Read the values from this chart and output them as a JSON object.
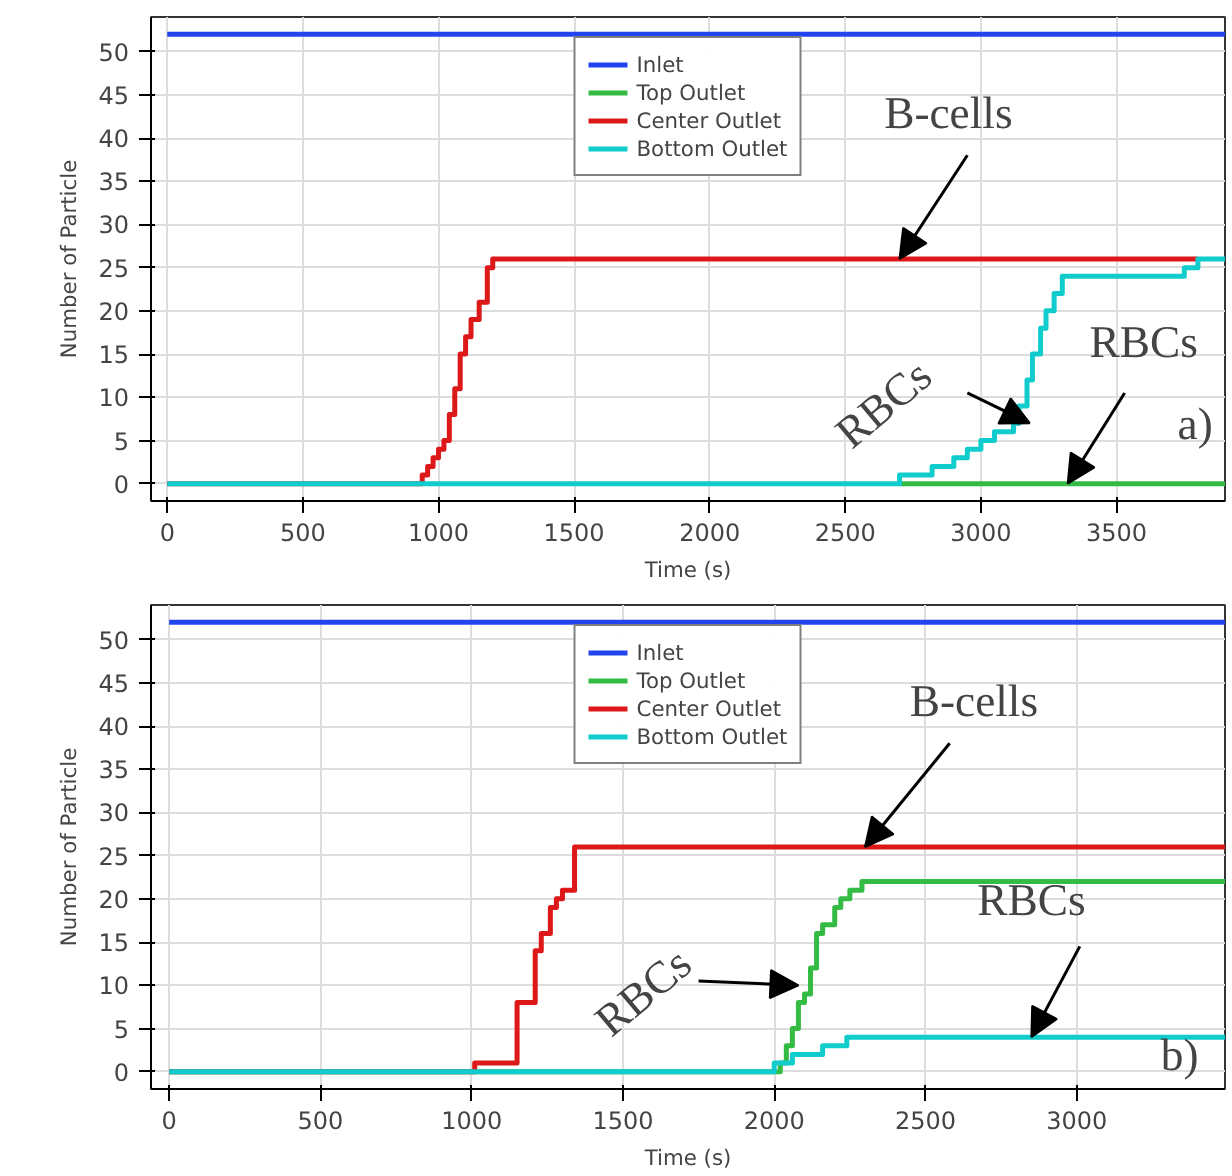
{
  "chart_data": [
    {
      "type": "step",
      "xlabel": "Time (s)",
      "ylabel": "Number of Particle",
      "xlim": [
        -60,
        3900
      ],
      "ylim": [
        -2,
        54
      ],
      "xticks": [
        0,
        500,
        1000,
        1500,
        2000,
        2500,
        3000,
        3500
      ],
      "yticks": [
        0,
        5,
        10,
        15,
        20,
        25,
        30,
        35,
        40,
        45,
        50
      ],
      "grid": true,
      "legend": "top",
      "series": [
        {
          "name": "Inlet",
          "color": "#2244ee",
          "x": [
            0,
            3900
          ],
          "values": [
            52,
            52
          ]
        },
        {
          "name": "Top Outlet",
          "color": "#33bb44",
          "x": [
            2700,
            3900
          ],
          "values": [
            0,
            0
          ]
        },
        {
          "name": "Center Outlet",
          "color": "#dd1818",
          "x": [
            0,
            940,
            960,
            980,
            1000,
            1020,
            1040,
            1060,
            1080,
            1100,
            1120,
            1150,
            1180,
            1200,
            3800
          ],
          "values": [
            0,
            1,
            2,
            3,
            4,
            5,
            8,
            11,
            15,
            17,
            19,
            21,
            25,
            26,
            26
          ]
        },
        {
          "name": "Bottom Outlet",
          "color": "#11cccc",
          "x": [
            0,
            2700,
            2820,
            2900,
            2950,
            3000,
            3050,
            3120,
            3140,
            3170,
            3190,
            3220,
            3240,
            3270,
            3300,
            3750,
            3800,
            3900
          ],
          "values": [
            0,
            1,
            2,
            3,
            4,
            5,
            6,
            7,
            9,
            12,
            15,
            18,
            20,
            22,
            24,
            25,
            26,
            26
          ]
        }
      ],
      "annotations": [
        {
          "text": "B-cells",
          "x": 2700,
          "y": 26
        },
        {
          "text": "RBCs",
          "x": 3180,
          "y": 7
        },
        {
          "text": "RBCs",
          "x": 3320,
          "y": 0
        },
        "a)"
      ]
    },
    {
      "type": "step",
      "xlabel": "Time (s)",
      "ylabel": "Number of Particle",
      "xlim": [
        -60,
        3490
      ],
      "ylim": [
        -2,
        54
      ],
      "xticks": [
        0,
        500,
        1000,
        1500,
        2000,
        2500,
        3000
      ],
      "yticks": [
        0,
        5,
        10,
        15,
        20,
        25,
        30,
        35,
        40,
        45,
        50
      ],
      "grid": true,
      "legend": "top",
      "series": [
        {
          "name": "Inlet",
          "color": "#2244ee",
          "x": [
            0,
            3490
          ],
          "values": [
            52,
            52
          ]
        },
        {
          "name": "Top Outlet",
          "color": "#33bb44",
          "x": [
            0,
            2020,
            2040,
            2060,
            2080,
            2100,
            2120,
            2140,
            2160,
            2200,
            2220,
            2250,
            2290,
            3490
          ],
          "values": [
            0,
            1,
            3,
            5,
            8,
            9,
            12,
            16,
            17,
            19,
            20,
            21,
            22,
            22
          ]
        },
        {
          "name": "Center Outlet",
          "color": "#dd1818",
          "x": [
            0,
            1010,
            1150,
            1210,
            1230,
            1260,
            1280,
            1300,
            1340,
            3490
          ],
          "values": [
            0,
            1,
            8,
            14,
            16,
            19,
            20,
            21,
            26,
            26
          ]
        },
        {
          "name": "Bottom Outlet",
          "color": "#11cccc",
          "x": [
            0,
            2000,
            2060,
            2160,
            2240,
            3490
          ],
          "values": [
            0,
            1,
            2,
            3,
            4,
            4
          ]
        }
      ],
      "annotations": [
        {
          "text": "B-cells",
          "x": 2300,
          "y": 26
        },
        {
          "text": "RBCs",
          "x": 2080,
          "y": 10
        },
        {
          "text": "RBCs",
          "x": 2850,
          "y": 4
        },
        "b)"
      ]
    }
  ]
}
